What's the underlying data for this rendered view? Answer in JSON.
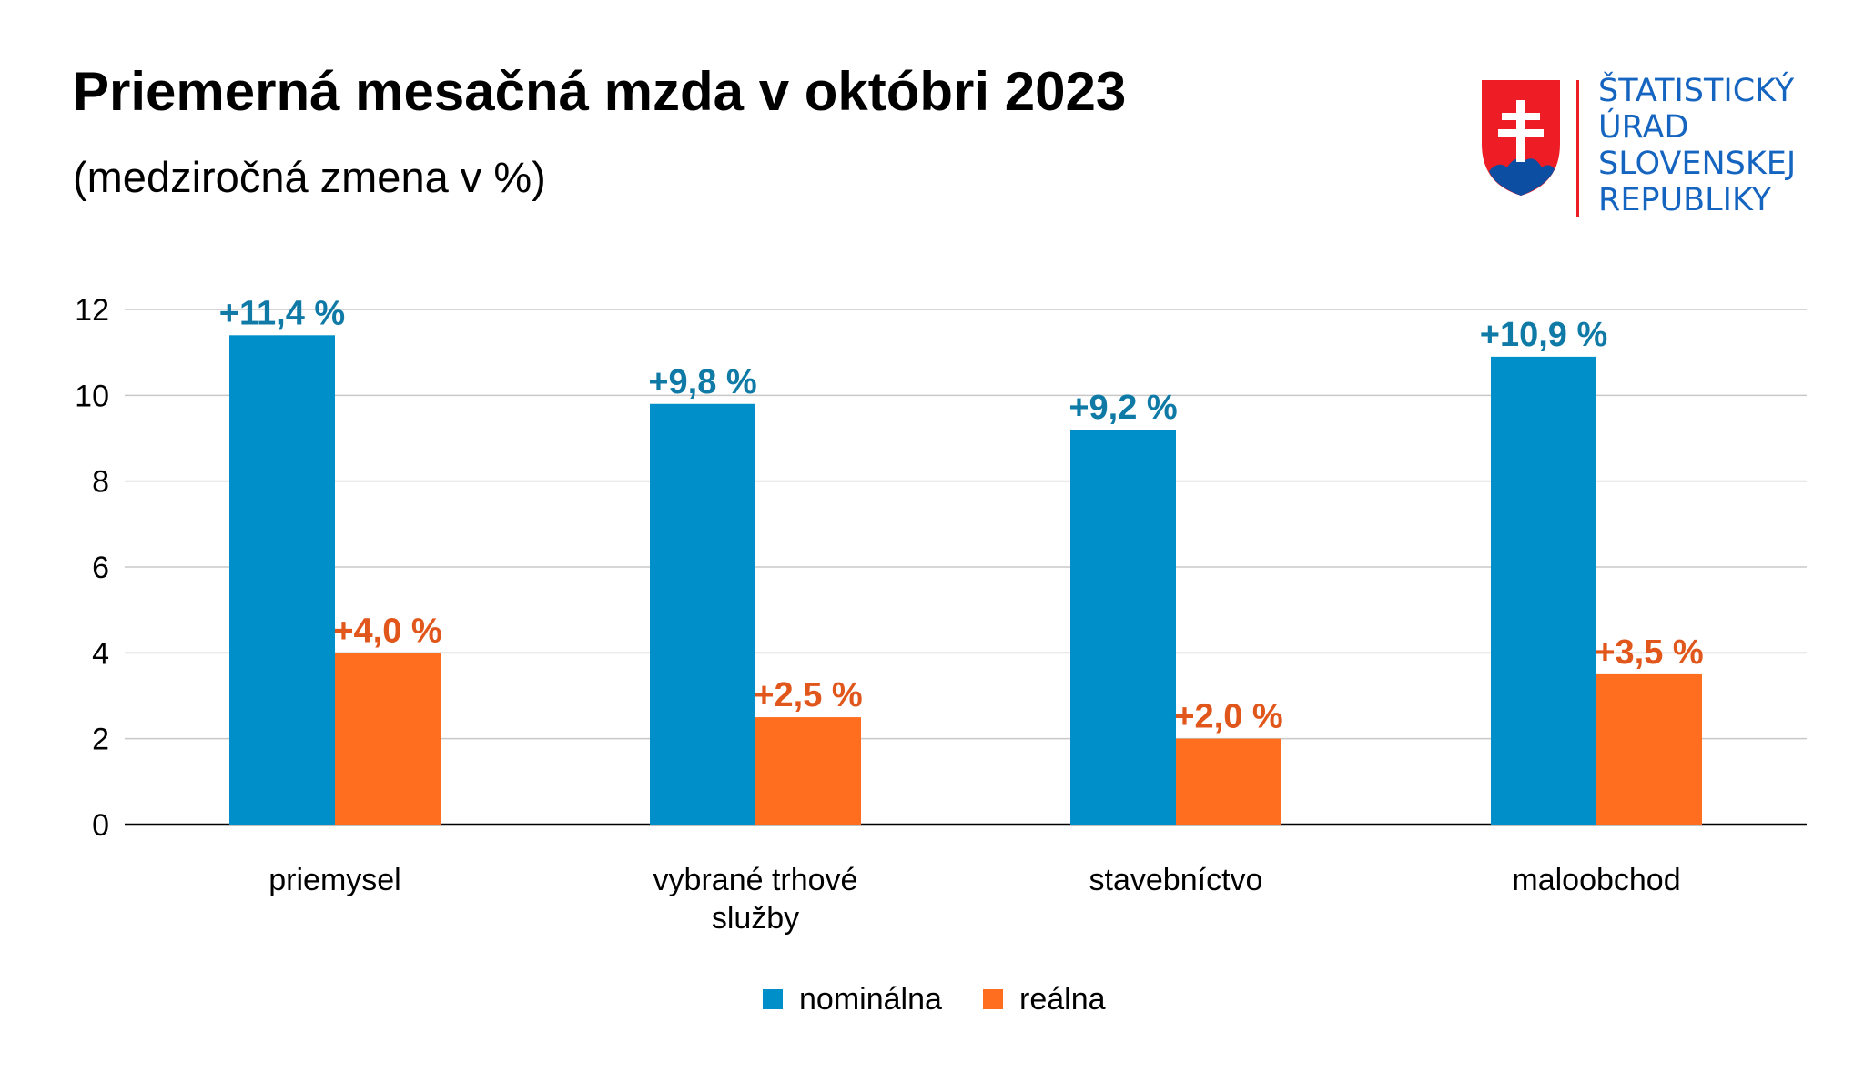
{
  "header": {
    "title": "Priemerná mesačná mzda v októbri 2023",
    "subtitle": "(medziročná zmena v %)"
  },
  "logo": {
    "lines": [
      "ŠTATISTICKÝ",
      "ÚRAD",
      "SLOVENSKEJ",
      "REPUBLIKY"
    ],
    "text_color": "#1565c0",
    "shield_colors": {
      "field": "#ee1c25",
      "hills": "#0b4ea2",
      "cross": "#ffffff"
    }
  },
  "chart_data": {
    "type": "bar",
    "categories": [
      "priemysel",
      "vybrané trhové služby",
      "stavebníctvo",
      "maloobchod"
    ],
    "category_lines": [
      [
        "priemysel"
      ],
      [
        "vybrané trhové",
        "služby"
      ],
      [
        "stavebníctvo"
      ],
      [
        "maloobchod"
      ]
    ],
    "series": [
      {
        "name": "nominálna",
        "values": [
          11.4,
          9.8,
          9.2,
          10.9
        ],
        "labels": [
          "+11,4 %",
          "+9,8 %",
          "+9,2 %",
          "+10,9 %"
        ],
        "color": "#008fc8",
        "label_color": "#0f7aa6"
      },
      {
        "name": "reálna",
        "values": [
          4.0,
          2.5,
          2.0,
          3.5
        ],
        "labels": [
          "+4,0 %",
          "+2,5 %",
          "+2,0 %",
          "+3,5 %"
        ],
        "color": "#ff6d1f",
        "label_color": "#e0561b"
      }
    ],
    "ylim": [
      0,
      12
    ],
    "yticks": [
      0,
      2,
      4,
      6,
      8,
      10,
      12
    ],
    "grid": true,
    "legend_position": "bottom"
  }
}
